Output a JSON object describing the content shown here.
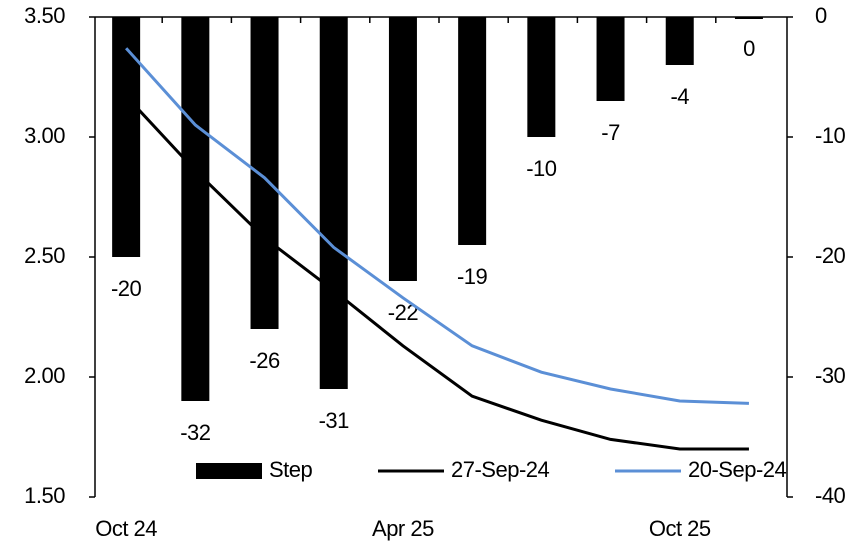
{
  "chart_data": {
    "type": "bar-line",
    "categories": [
      "Oct 24",
      null,
      null,
      null,
      "Apr 25",
      null,
      null,
      null,
      "Oct 25",
      null
    ],
    "series": [
      {
        "name": "Step",
        "type": "bar",
        "axis": "y2",
        "color": "#000000",
        "values": [
          -20,
          -32,
          -26,
          -31,
          -22,
          -19,
          -10,
          -7,
          -4,
          0
        ]
      },
      {
        "name": "27-Sep-24",
        "type": "line",
        "color": "#000000",
        "values": [
          3.17,
          2.86,
          2.58,
          2.36,
          2.13,
          1.92,
          1.82,
          1.74,
          1.7,
          1.7
        ]
      },
      {
        "name": "20-Sep-24",
        "type": "line",
        "color": "#5b8fd6",
        "values": [
          3.37,
          3.05,
          2.83,
          2.54,
          2.33,
          2.13,
          2.02,
          1.95,
          1.9,
          1.89
        ]
      }
    ],
    "ylim": [
      1.5,
      3.5
    ],
    "yticks": [
      {
        "value": 1.5,
        "label": "1.50"
      },
      {
        "value": 2.0,
        "label": "2.00"
      },
      {
        "value": 2.5,
        "label": "2.50"
      },
      {
        "value": 3.0,
        "label": "3.00"
      },
      {
        "value": 3.5,
        "label": "3.50"
      }
    ],
    "y2lim": [
      -40,
      0
    ],
    "y2ticks": [
      -40,
      -30,
      -20,
      -10,
      0
    ],
    "legend": "bottom"
  }
}
